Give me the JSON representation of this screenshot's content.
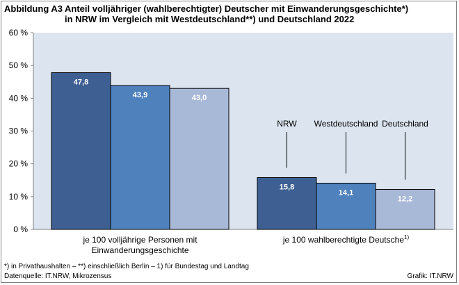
{
  "figure": {
    "label": "Abbildung A3",
    "title_line1": "Anteil volljähriger (wahlberechtigter) Deutscher mit Einwanderungsgeschichte*)",
    "title_line2": "in NRW im Vergleich mit Westdeutschland**) und Deutschland 2022",
    "footnote": "*) in Privathaushalten  –  **) einschließlich Berlin  –  1) für Bundestag und Landtag",
    "source": "Datenquelle:  IT.NRW,  Mikrozensus",
    "credit": "Grafik: IT.NRW"
  },
  "chart_data": {
    "type": "bar",
    "categories": [
      "je 100 volljährige Personen mit Einwanderungsgeschichte",
      "je 100 wahlberechtigte Deutsche1)"
    ],
    "category_lines": [
      [
        "je 100 volljährige Personen mit",
        "Einwanderungsgeschichte"
      ],
      [
        "je 100 wahlberechtigte Deutsche",
        "1)"
      ]
    ],
    "series": [
      {
        "name": "NRW",
        "values": [
          47.8,
          15.8
        ],
        "labels": [
          "47,8",
          "15,8"
        ],
        "color": "#3d5f92"
      },
      {
        "name": "Westdeutschland",
        "values": [
          43.9,
          14.1
        ],
        "labels": [
          "43,9",
          "14,1"
        ],
        "color": "#4f81bd"
      },
      {
        "name": "Deutschland",
        "values": [
          43.0,
          12.2
        ],
        "labels": [
          "43,0",
          "12,2"
        ],
        "color": "#a8b8d7"
      }
    ],
    "ylim": [
      0,
      60
    ],
    "yticks": [
      0,
      10,
      20,
      30,
      40,
      50,
      60
    ],
    "ytick_labels": [
      "0 %",
      "10 %",
      "20 %",
      "30 %",
      "40 %",
      "50 %",
      "60 %"
    ],
    "xlabel": "",
    "ylabel": "",
    "plot_background": "#dce4ef",
    "grid": false,
    "legend": "callout labels above the second group"
  }
}
